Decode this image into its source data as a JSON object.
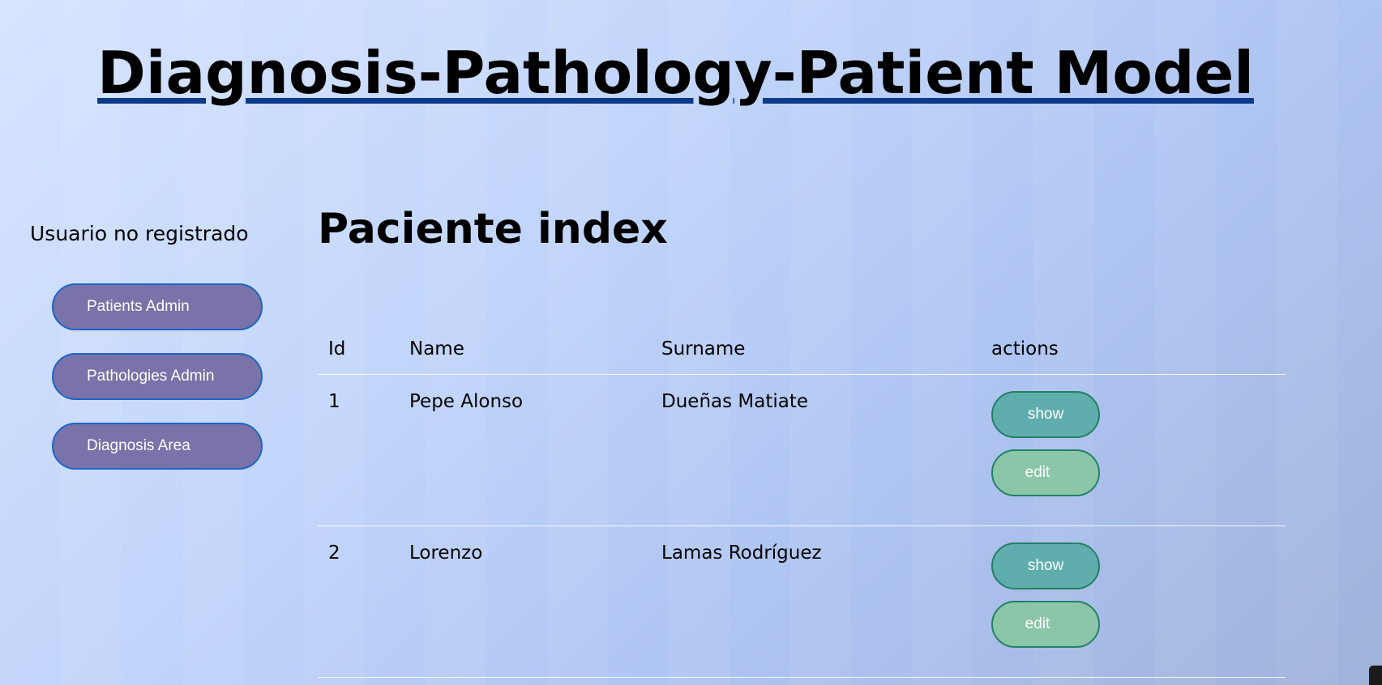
{
  "header": {
    "site_title": "Diagnosis-Pathology-Patient Model"
  },
  "sidebar": {
    "user_status": "Usuario no registrado",
    "nav": [
      {
        "label": "Patients Admin"
      },
      {
        "label": "Pathologies Admin"
      },
      {
        "label": "Diagnosis Area"
      }
    ]
  },
  "main": {
    "page_title": "Paciente index",
    "table": {
      "headers": [
        "Id",
        "Name",
        "Surname",
        "actions"
      ],
      "rows": [
        {
          "id": "1",
          "name": "Pepe Alonso",
          "surname": "Dueñas Matiate",
          "show_label": "show",
          "edit_label": "edit"
        },
        {
          "id": "2",
          "name": "Lorenzo",
          "surname": "Lamas Rodríguez",
          "show_label": "show",
          "edit_label": "edit"
        }
      ]
    }
  },
  "colors": {
    "nav_button": "#7a73a9",
    "nav_button_border": "#1e64c8",
    "show_button": "#5fadac",
    "edit_button": "#8cc6a9",
    "title_underline": "#0d3a8a"
  }
}
